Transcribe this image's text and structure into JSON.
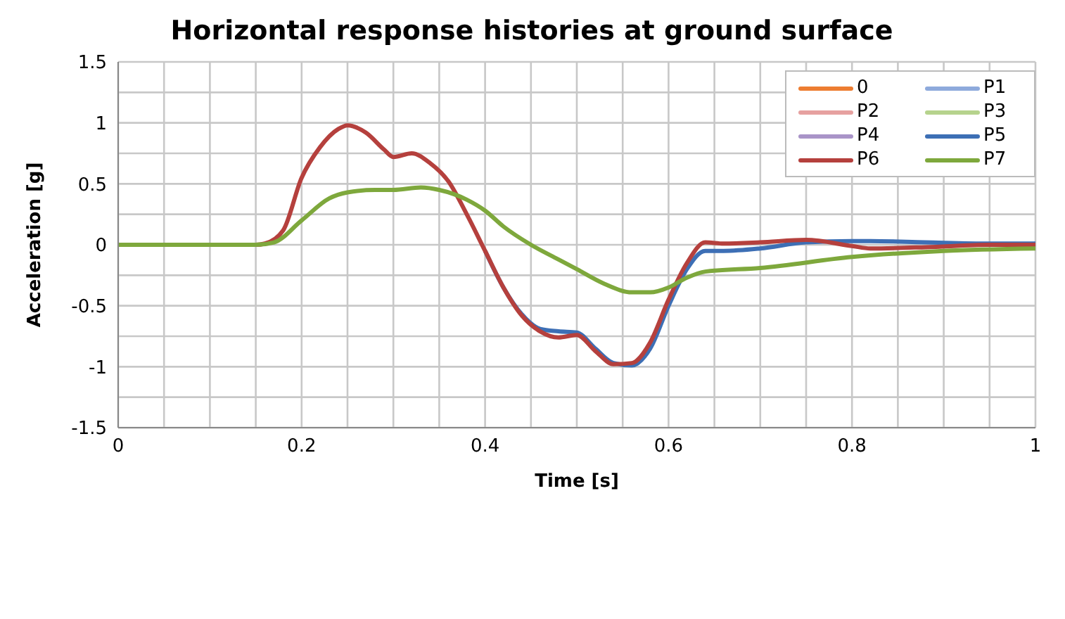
{
  "chart_data": {
    "type": "line",
    "title": "Horizontal response histories at ground surface",
    "xlabel": "Time [s]",
    "ylabel": "Acceleration [g]",
    "xlim": [
      0,
      1
    ],
    "ylim": [
      -1.5,
      1.5
    ],
    "xticks": [
      0,
      {
        "value": 0.05,
        "label": null
      },
      {
        "value": 0.1,
        "label": null
      },
      {
        "value": 0.15,
        "label": null
      },
      0.2,
      {
        "value": 0.25,
        "label": null
      },
      {
        "value": 0.3,
        "label": null
      },
      {
        "value": 0.35,
        "label": null
      },
      0.4,
      {
        "value": 0.45,
        "label": null
      },
      {
        "value": 0.5,
        "label": null
      },
      {
        "value": 0.55,
        "label": null
      },
      0.6,
      {
        "value": 0.65,
        "label": null
      },
      {
        "value": 0.7,
        "label": null
      },
      {
        "value": 0.75,
        "label": null
      },
      0.8,
      {
        "value": 0.85,
        "label": null
      },
      {
        "value": 0.9,
        "label": null
      },
      {
        "value": 0.95,
        "label": null
      },
      1
    ],
    "yticks": [
      -1.5,
      {
        "value": -1.25,
        "label": null
      },
      -1,
      {
        "value": -0.75,
        "label": null
      },
      -0.5,
      {
        "value": -0.25,
        "label": null
      },
      0,
      {
        "value": 0.25,
        "label": null
      },
      0.5,
      {
        "value": 0.75,
        "label": null
      },
      1,
      {
        "value": 1.25,
        "label": null
      },
      1.5
    ],
    "grid": true,
    "legend": "top right",
    "marker": "none",
    "line_style": "solid",
    "x": [
      0,
      0.15,
      0.16,
      0.18,
      0.2,
      0.22,
      0.24,
      0.25,
      0.27,
      0.29,
      0.3,
      0.32,
      0.34,
      0.36,
      0.38,
      0.4,
      0.42,
      0.44,
      0.46,
      0.48,
      0.5,
      0.52,
      0.54,
      0.56,
      0.58,
      0.6,
      0.62,
      0.64,
      0.66,
      0.7,
      0.75,
      0.8,
      0.82,
      0.88,
      0.95,
      1
    ],
    "series": [
      {
        "name": "0",
        "color": "#ed7d31",
        "values": [
          null,
          null,
          null,
          null,
          null,
          null,
          null,
          null,
          null,
          null,
          null,
          null,
          null,
          null,
          null,
          null,
          null,
          null,
          null,
          null,
          null,
          null,
          null,
          null,
          null,
          null,
          null,
          null,
          null,
          null,
          null,
          null,
          null,
          null,
          null,
          null
        ]
      },
      {
        "name": "P1",
        "color": "#8eaadc",
        "values": [
          null,
          null,
          null,
          null,
          null,
          null,
          null,
          null,
          null,
          null,
          null,
          null,
          null,
          null,
          null,
          null,
          null,
          null,
          null,
          null,
          null,
          null,
          null,
          null,
          null,
          null,
          null,
          null,
          null,
          null,
          null,
          null,
          null,
          null,
          null,
          null
        ]
      },
      {
        "name": "P2",
        "color": "#e6a1a0",
        "values": [
          null,
          null,
          null,
          null,
          null,
          null,
          null,
          null,
          null,
          null,
          null,
          null,
          null,
          null,
          null,
          null,
          null,
          null,
          null,
          null,
          null,
          null,
          null,
          null,
          null,
          null,
          null,
          null,
          null,
          null,
          null,
          null,
          null,
          null,
          null,
          null
        ]
      },
      {
        "name": "P3",
        "color": "#b6d38d",
        "values": [
          null,
          null,
          null,
          null,
          null,
          null,
          null,
          null,
          null,
          null,
          null,
          null,
          null,
          null,
          null,
          null,
          null,
          null,
          null,
          null,
          null,
          null,
          null,
          null,
          null,
          null,
          null,
          null,
          null,
          null,
          null,
          null,
          null,
          null,
          null,
          null
        ]
      },
      {
        "name": "P4",
        "color": "#a994c8",
        "values": [
          null,
          null,
          null,
          null,
          null,
          null,
          null,
          null,
          null,
          null,
          null,
          null,
          null,
          null,
          null,
          null,
          null,
          null,
          null,
          null,
          null,
          null,
          null,
          null,
          null,
          null,
          null,
          null,
          null,
          null,
          null,
          null,
          null,
          null,
          null,
          null
        ]
      },
      {
        "name": "P5",
        "color": "#3d6fb5",
        "values": [
          null,
          null,
          null,
          null,
          null,
          null,
          null,
          null,
          null,
          null,
          null,
          null,
          null,
          null,
          null,
          -0.05,
          -0.35,
          -0.57,
          -0.69,
          -0.71,
          -0.72,
          -0.85,
          -0.97,
          -0.99,
          -0.85,
          -0.5,
          -0.2,
          -0.05,
          -0.05,
          -0.03,
          0.02,
          0.03,
          0.03,
          0.02,
          0.01,
          0.01
        ]
      },
      {
        "name": "P6",
        "color": "#b5403d",
        "values": [
          0,
          0,
          0.01,
          0.12,
          0.55,
          0.8,
          0.95,
          0.98,
          0.92,
          0.78,
          0.72,
          0.75,
          0.67,
          0.52,
          0.25,
          -0.05,
          -0.35,
          -0.58,
          -0.71,
          -0.76,
          -0.74,
          -0.87,
          -0.98,
          -0.97,
          -0.8,
          -0.45,
          -0.15,
          0.02,
          0.01,
          0.02,
          0.04,
          -0.01,
          -0.03,
          -0.02,
          0,
          0
        ]
      },
      {
        "name": "P7",
        "color": "#7ea83c",
        "x": [
          0,
          0.15,
          0.17,
          0.2,
          0.23,
          0.25,
          0.28,
          0.3,
          0.33,
          0.35,
          0.38,
          0.4,
          0.42,
          0.45,
          0.48,
          0.5,
          0.53,
          0.56,
          0.58,
          0.6,
          0.62,
          0.64,
          0.7,
          0.8,
          0.9,
          1
        ],
        "values": [
          0,
          0,
          0.02,
          0.2,
          0.38,
          0.43,
          0.45,
          0.45,
          0.47,
          0.45,
          0.37,
          0.28,
          0.15,
          0,
          -0.12,
          -0.2,
          -0.32,
          -0.39,
          -0.39,
          -0.35,
          -0.27,
          -0.22,
          -0.19,
          -0.1,
          -0.05,
          -0.03
        ]
      }
    ]
  }
}
